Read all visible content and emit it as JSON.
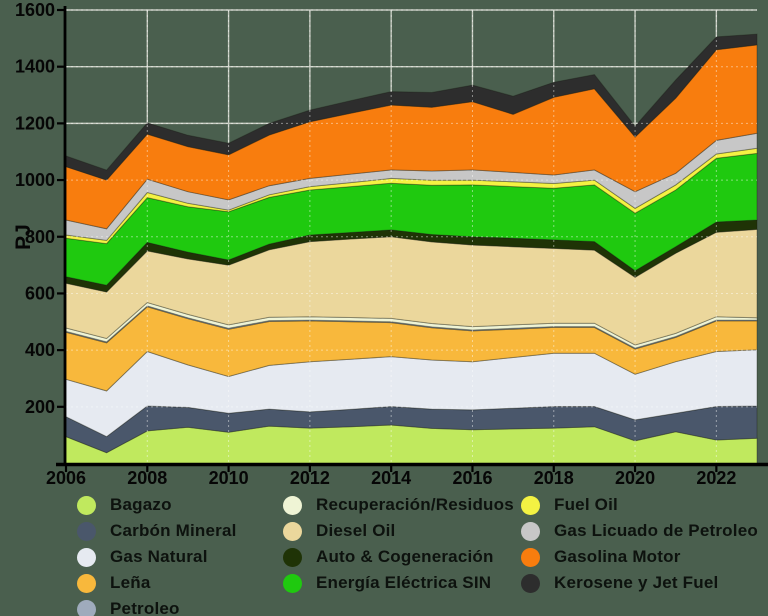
{
  "colors": {
    "background": "#4a5f4e",
    "axis": "#000000",
    "tick_label": "#060606",
    "grid_solid": "#c5cabf",
    "grid_dash_over_stack": "rgba(255,255,255,0.45)",
    "legend_text": "#0d120e"
  },
  "chart_data": {
    "type": "area",
    "title": "",
    "xlabel": "",
    "ylabel": "PJ",
    "ylim": [
      0,
      1600
    ],
    "xlim": [
      2006,
      2023
    ],
    "y_ticks": [
      200,
      400,
      600,
      800,
      1000,
      1200,
      1400,
      1600
    ],
    "x_ticks": [
      2006,
      2008,
      2010,
      2012,
      2014,
      2016,
      2018,
      2020,
      2022
    ],
    "grid": true,
    "legend_position": "bottom",
    "x": [
      2006,
      2007,
      2008,
      2009,
      2010,
      2011,
      2012,
      2013,
      2014,
      2015,
      2016,
      2017,
      2018,
      2019,
      2020,
      2021,
      2022,
      2023
    ],
    "series": [
      {
        "name": "Bagazo",
        "slug": "bagazo",
        "color": "#c0e95e",
        "values": [
          95,
          38,
          115,
          128,
          110,
          132,
          125,
          130,
          136,
          124,
          119,
          122,
          125,
          130,
          80,
          112,
          83,
          89
        ]
      },
      {
        "name": "Carbón Mineral",
        "slug": "carbon-mineral",
        "color": "#4a576b",
        "values": [
          70,
          57,
          88,
          70,
          67,
          60,
          57,
          61,
          65,
          68,
          70,
          73,
          76,
          71,
          74,
          65,
          118,
          114
        ]
      },
      {
        "name": "Gas Natural",
        "slug": "gas-natural",
        "color": "#e6eaf1",
        "values": [
          132,
          161,
          192,
          150,
          130,
          154,
          177,
          177,
          176,
          173,
          170,
          179,
          188,
          188,
          161,
          182,
          194,
          198
        ]
      },
      {
        "name": "Leña",
        "slug": "lena",
        "color": "#f8b83c",
        "values": [
          166,
          170,
          158,
          163,
          167,
          155,
          144,
          132,
          120,
          114,
          109,
          100,
          91,
          91,
          89,
          86,
          108,
          102
        ]
      },
      {
        "name": "Petroleo",
        "slug": "petroleo",
        "color": "#9fabbc",
        "values": [
          3,
          3,
          3,
          3,
          3,
          3,
          3,
          3,
          3,
          3,
          3,
          3,
          3,
          3,
          3,
          3,
          3,
          3
        ]
      },
      {
        "name": "Recuperación/Residuos",
        "slug": "recuperacion-residuos",
        "color": "#eff4d5",
        "values": [
          12,
          12,
          12,
          12,
          12,
          12,
          12,
          12,
          12,
          12,
          12,
          12,
          12,
          12,
          11,
          11,
          12,
          8
        ]
      },
      {
        "name": "Diesel Oil",
        "slug": "diesel-oil",
        "color": "#ebd79c",
        "values": [
          158,
          164,
          182,
          196,
          211,
          238,
          265,
          277,
          288,
          288,
          288,
          276,
          264,
          258,
          239,
          283,
          298,
          312
        ]
      },
      {
        "name": "Auto & Cogeneración",
        "slug": "auto-cogeneracion",
        "color": "#1f3306",
        "values": [
          23,
          24,
          30,
          24,
          18,
          20,
          23,
          23,
          24,
          26,
          29,
          30,
          30,
          30,
          23,
          23,
          36,
          33
        ]
      },
      {
        "name": "Energía Eléctrica SIN",
        "slug": "energia-electrica-sin",
        "color": "#1fc90f",
        "values": [
          136,
          147,
          158,
          160,
          170,
          165,
          159,
          162,
          165,
          174,
          183,
          182,
          182,
          200,
          203,
          200,
          225,
          235
        ]
      },
      {
        "name": "Fuel Oil",
        "slug": "fuel-oil",
        "color": "#f4f243",
        "values": [
          11,
          11,
          18,
          12,
          6,
          9,
          12,
          14,
          17,
          17,
          17,
          17,
          17,
          17,
          17,
          18,
          15,
          18
        ]
      },
      {
        "name": "Gas Licuado de Petroleo",
        "slug": "gas-licuado-de-petroleo",
        "color": "#c7c7c7",
        "values": [
          53,
          41,
          47,
          41,
          36,
          32,
          29,
          30,
          30,
          33,
          36,
          33,
          30,
          36,
          59,
          41,
          48,
          53
        ]
      },
      {
        "name": "Gasolina Motor",
        "slug": "gasolina-motor",
        "color": "#f87d0e",
        "values": [
          188,
          172,
          159,
          159,
          159,
          179,
          200,
          215,
          229,
          225,
          241,
          205,
          274,
          286,
          193,
          265,
          320,
          312
        ]
      },
      {
        "name": "Kerosene y Jet Fuel",
        "slug": "kerosene-y-jet-fuel",
        "color": "#2d2d2d",
        "values": [
          38,
          35,
          40,
          40,
          41,
          41,
          41,
          44,
          47,
          52,
          58,
          64,
          53,
          50,
          38,
          64,
          45,
          38
        ]
      }
    ],
    "legend_columns": [
      [
        "Bagazo",
        "Carbón Mineral",
        "Gas Natural",
        "Leña",
        "Petroleo"
      ],
      [
        "Recuperación/Residuos",
        "Diesel Oil",
        "Auto & Cogeneración",
        "Energía Eléctrica SIN"
      ],
      [
        "Fuel Oil",
        "Gas Licuado de Petroleo",
        "Gasolina Motor",
        "Kerosene y Jet Fuel"
      ]
    ]
  }
}
